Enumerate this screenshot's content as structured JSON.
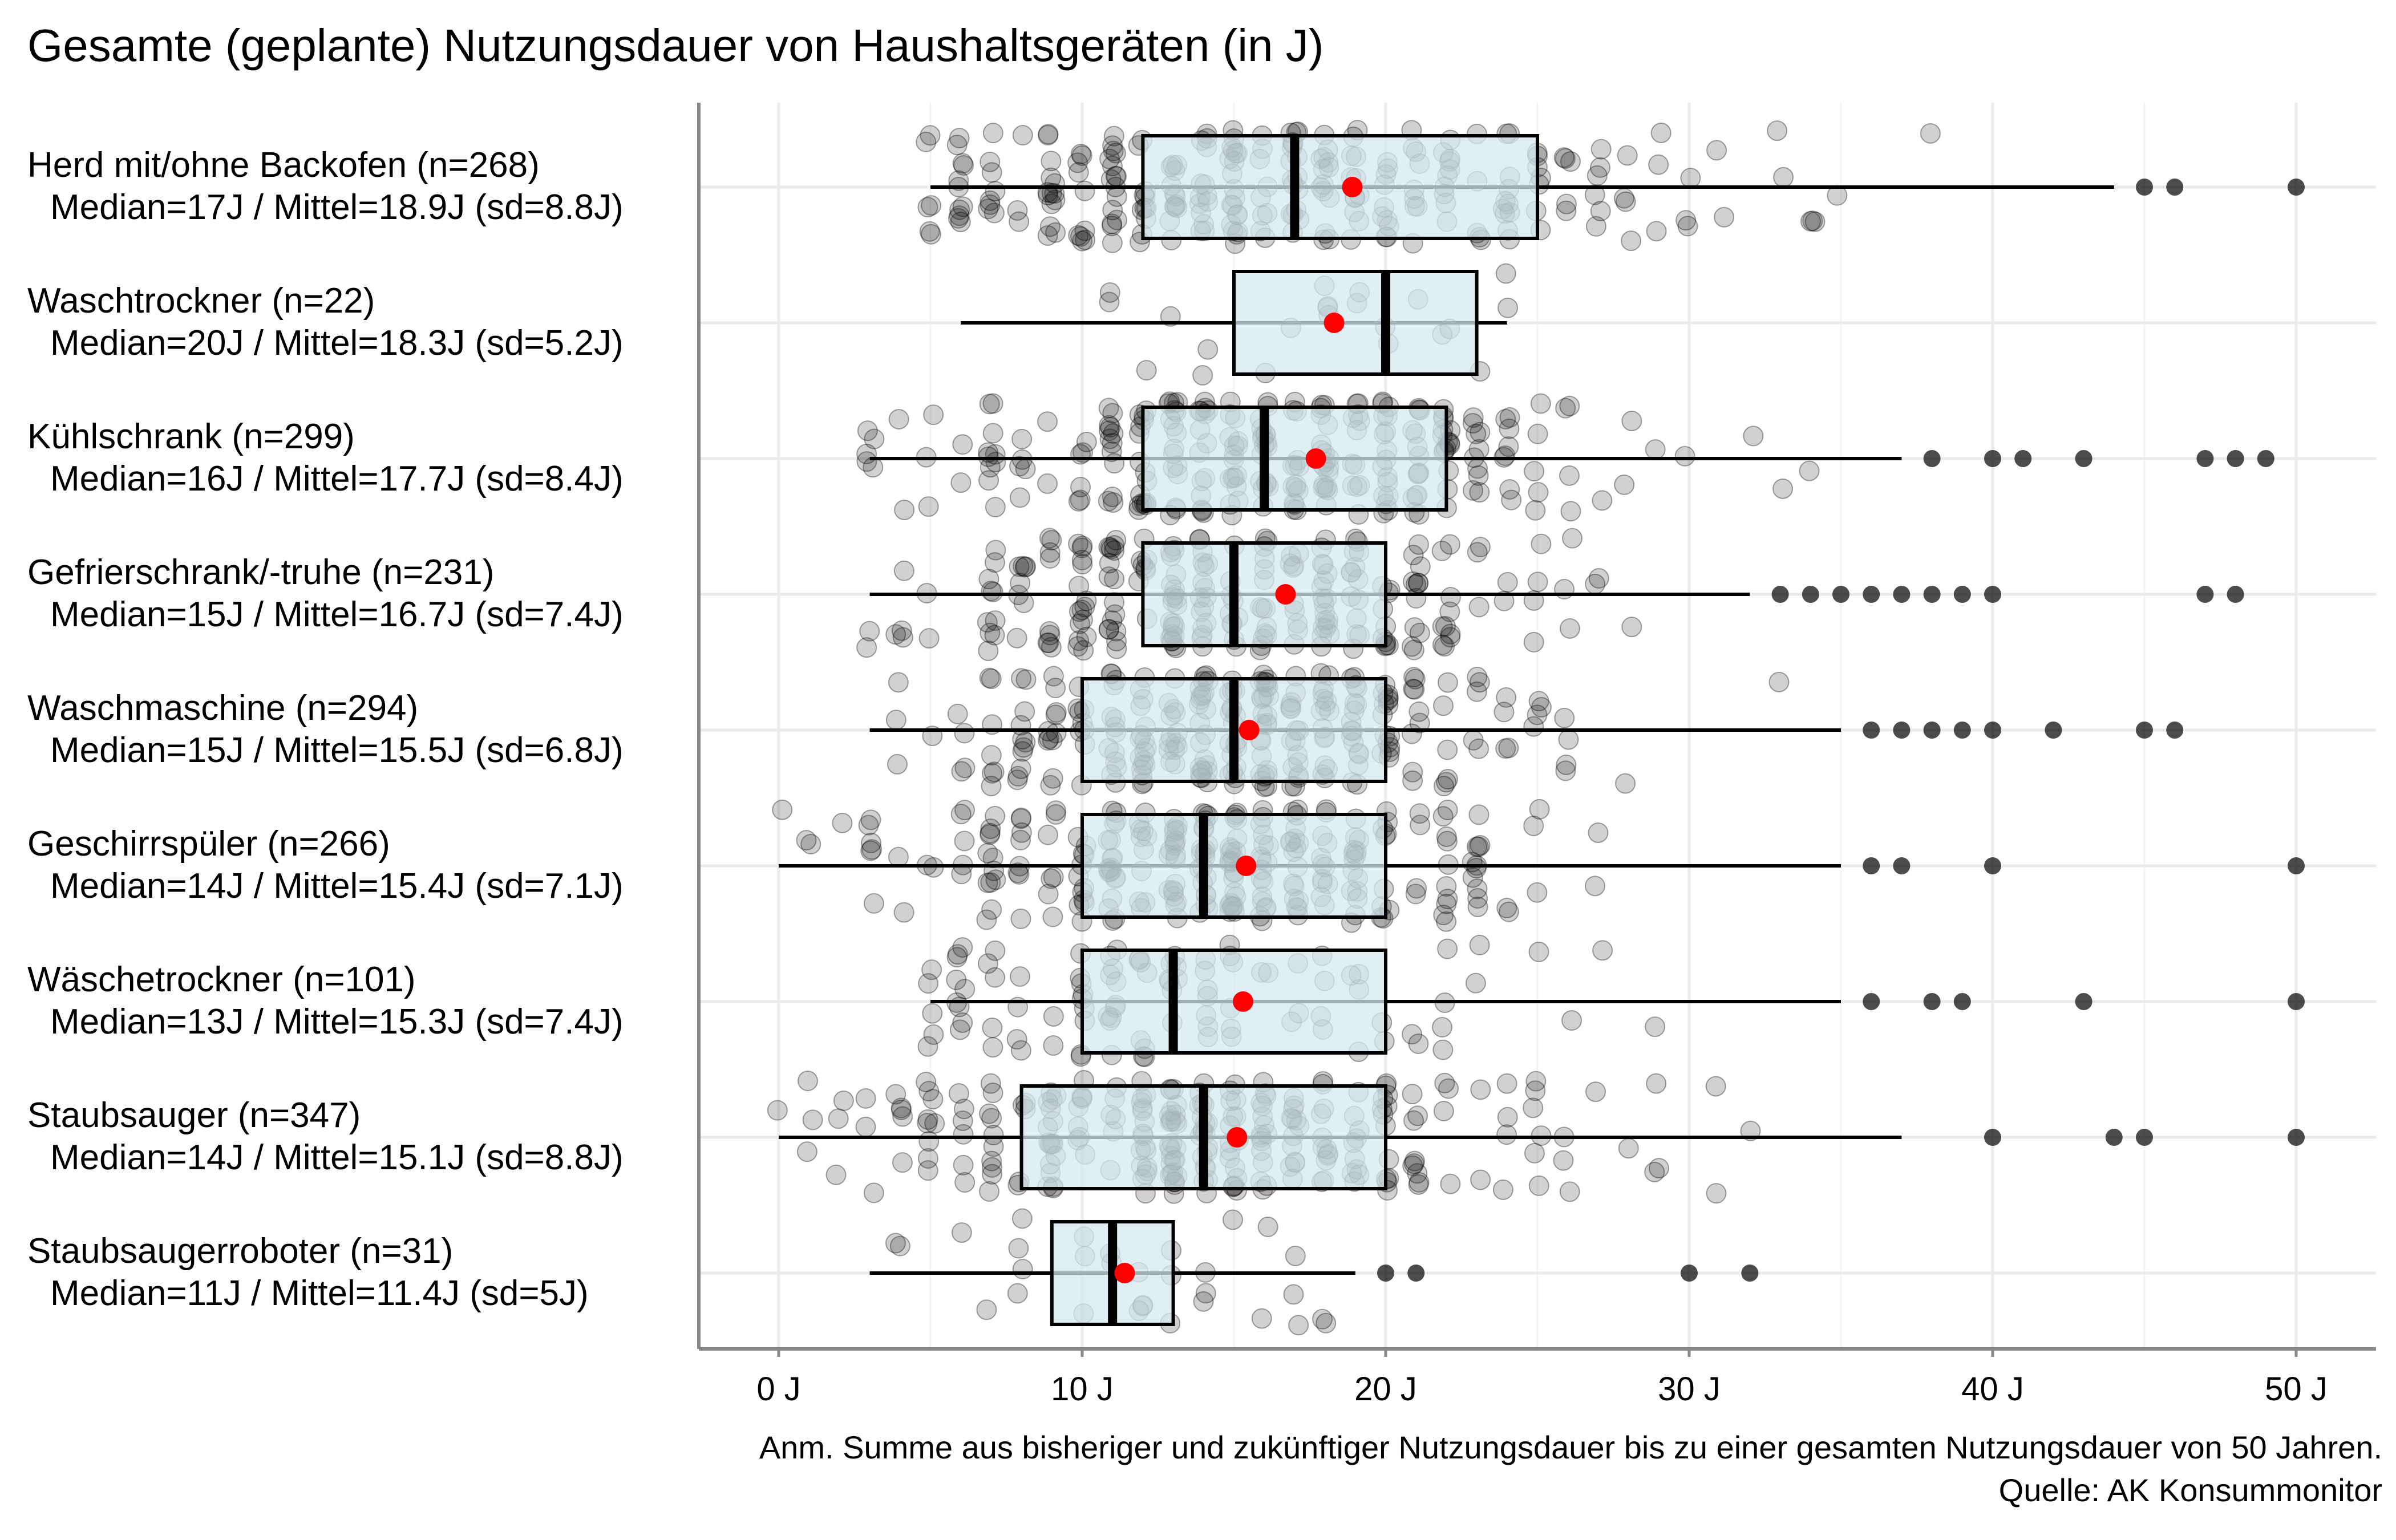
{
  "chart_data": {
    "type": "boxplot",
    "title": "Gesamte (geplante) Nutzungsdauer von Haushaltsgeräten (in J)",
    "xlim": [
      0,
      50
    ],
    "x_ticks": [
      {
        "value": 0,
        "label": "0 J"
      },
      {
        "value": 10,
        "label": "10 J"
      },
      {
        "value": 20,
        "label": "20 J"
      },
      {
        "value": 30,
        "label": "30 J"
      },
      {
        "value": 40,
        "label": "40 J"
      },
      {
        "value": 50,
        "label": "50 J"
      }
    ],
    "grid": true,
    "colors": {
      "box_fill": "#d6e9f0",
      "mean": "#ff0000",
      "point": "#000000",
      "grid": "#ebebeb",
      "axis": "#888888"
    },
    "categories": [
      {
        "label": "Herd mit/ohne Backofen (n=268)",
        "stats": "Median=17J / Mittel=18.9J (sd=8.8J)",
        "n": 268,
        "median": 17,
        "mean": 18.9,
        "sd": 8.8,
        "q1": 12,
        "q3": 25,
        "whisker_low": 5,
        "whisker_high": 44,
        "outliers": [
          45,
          46,
          50
        ]
      },
      {
        "label": "Waschtrockner (n=22)",
        "stats": "Median=20J / Mittel=18.3J (sd=5.2J)",
        "n": 22,
        "median": 20,
        "mean": 18.3,
        "sd": 5.2,
        "q1": 15,
        "q3": 23,
        "whisker_low": 6,
        "whisker_high": 24,
        "outliers": []
      },
      {
        "label": "Kühlschrank (n=299)",
        "stats": "Median=16J / Mittel=17.7J (sd=8.4J)",
        "n": 299,
        "median": 16,
        "mean": 17.7,
        "sd": 8.4,
        "q1": 12,
        "q3": 22,
        "whisker_low": 3,
        "whisker_high": 37,
        "outliers": [
          38,
          40,
          41,
          43,
          47,
          48,
          49
        ]
      },
      {
        "label": "Gefrierschrank/-truhe (n=231)",
        "stats": "Median=15J / Mittel=16.7J (sd=7.4J)",
        "n": 231,
        "median": 15,
        "mean": 16.7,
        "sd": 7.4,
        "q1": 12,
        "q3": 20,
        "whisker_low": 3,
        "whisker_high": 32,
        "outliers": [
          33,
          34,
          35,
          36,
          37,
          38,
          39,
          40,
          47,
          48
        ]
      },
      {
        "label": "Waschmaschine (n=294)",
        "stats": "Median=15J / Mittel=15.5J (sd=6.8J)",
        "n": 294,
        "median": 15,
        "mean": 15.5,
        "sd": 6.8,
        "q1": 10,
        "q3": 20,
        "whisker_low": 3,
        "whisker_high": 35,
        "outliers": [
          36,
          37,
          38,
          39,
          40,
          42,
          45,
          46
        ]
      },
      {
        "label": "Geschirrspüler (n=266)",
        "stats": "Median=14J / Mittel=15.4J (sd=7.1J)",
        "n": 266,
        "median": 14,
        "mean": 15.4,
        "sd": 7.1,
        "q1": 10,
        "q3": 20,
        "whisker_low": 0,
        "whisker_high": 35,
        "outliers": [
          36,
          37,
          40,
          50
        ]
      },
      {
        "label": "Wäschetrockner (n=101)",
        "stats": "Median=13J / Mittel=15.3J (sd=7.4J)",
        "n": 101,
        "median": 13,
        "mean": 15.3,
        "sd": 7.4,
        "q1": 10,
        "q3": 20,
        "whisker_low": 5,
        "whisker_high": 35,
        "outliers": [
          36,
          38,
          39,
          43,
          50
        ]
      },
      {
        "label": "Staubsauger (n=347)",
        "stats": "Median=14J / Mittel=15.1J (sd=8.8J)",
        "n": 347,
        "median": 14,
        "mean": 15.1,
        "sd": 8.8,
        "q1": 8,
        "q3": 20,
        "whisker_low": 0,
        "whisker_high": 37,
        "outliers": [
          40,
          44,
          45,
          50
        ]
      },
      {
        "label": "Staubsaugerroboter (n=31)",
        "stats": "Median=11J / Mittel=11.4J (sd=5J)",
        "n": 31,
        "median": 11,
        "mean": 11.4,
        "sd": 5,
        "q1": 9,
        "q3": 13,
        "whisker_low": 3,
        "whisker_high": 19,
        "outliers": [
          20,
          21,
          30,
          32
        ]
      }
    ],
    "notes": [
      "Anm. Summe aus bisheriger und zukünftiger Nutzungsdauer bis zu einer gesamten Nutzungsdauer von 50 Jahren.",
      "Quelle: AK Konsummonitor"
    ]
  }
}
